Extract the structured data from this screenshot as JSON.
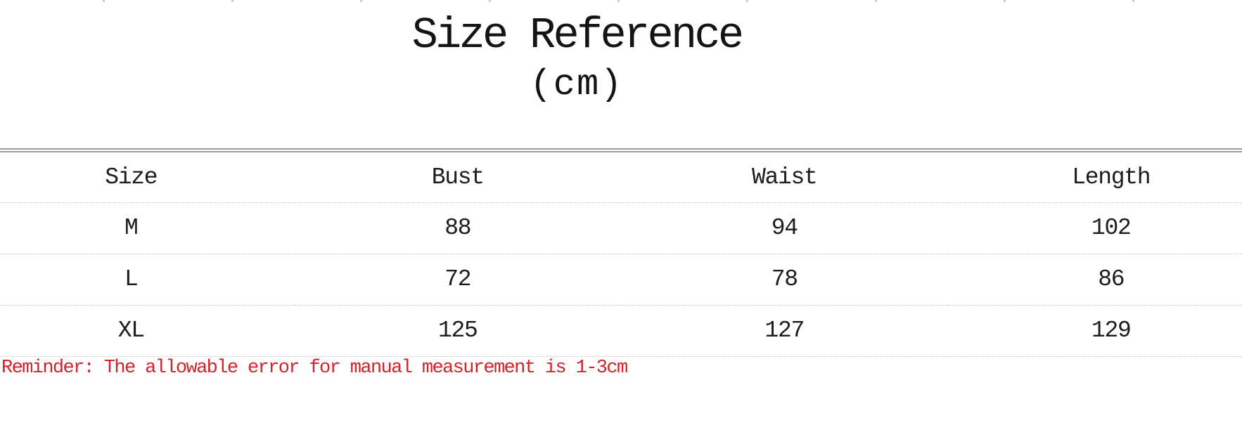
{
  "title": {
    "main": "Size Reference",
    "unit": "(cm)"
  },
  "table": {
    "headers": [
      "Size",
      "Bust",
      "Waist",
      "Length"
    ],
    "rows": [
      {
        "size": "M",
        "bust": "88",
        "waist": "94",
        "length": "102"
      },
      {
        "size": "L",
        "bust": "72",
        "waist": "78",
        "length": "86"
      },
      {
        "size": "XL",
        "bust": "125",
        "waist": "127",
        "length": "129"
      }
    ]
  },
  "reminder": "Reminder: The allowable error for manual measurement is 1-3cm",
  "colors": {
    "background": "#ffffff",
    "text": "#1c1c1c",
    "reminder_red": "#d2232a",
    "double_line_gray": "#9c9c9c",
    "dotted_line_gray": "#c6c6c6"
  }
}
